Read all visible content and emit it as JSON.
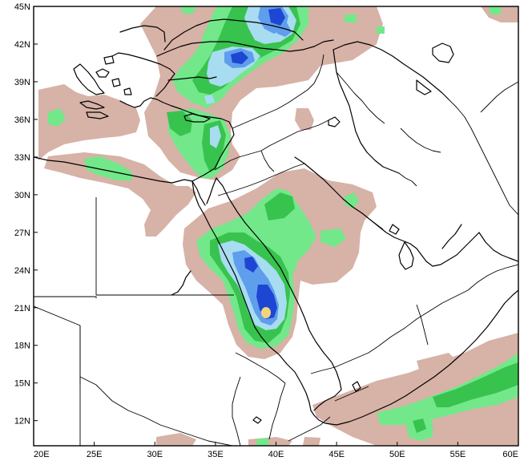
{
  "map": {
    "lat_labels": [
      "45N",
      "42N",
      "39N",
      "36N",
      "33N",
      "30N",
      "27N",
      "24N",
      "21N",
      "18N",
      "15N",
      "12N"
    ],
    "lon_labels": [
      "20E",
      "25E",
      "30E",
      "35E",
      "40E",
      "45E",
      "50E",
      "55E",
      "60E"
    ],
    "extent": {
      "lon_min": 20,
      "lon_max": 60,
      "lat_min": 10,
      "lat_max": 45
    },
    "shading_colors": {
      "level_1": "#d7b2a7",
      "level_2": "#72e88a",
      "level_3": "#38c34f",
      "level_4": "#a8dcf0",
      "level_5": "#5f9ded",
      "level_6": "#1d46d2",
      "level_7": "#f2d47a"
    }
  }
}
